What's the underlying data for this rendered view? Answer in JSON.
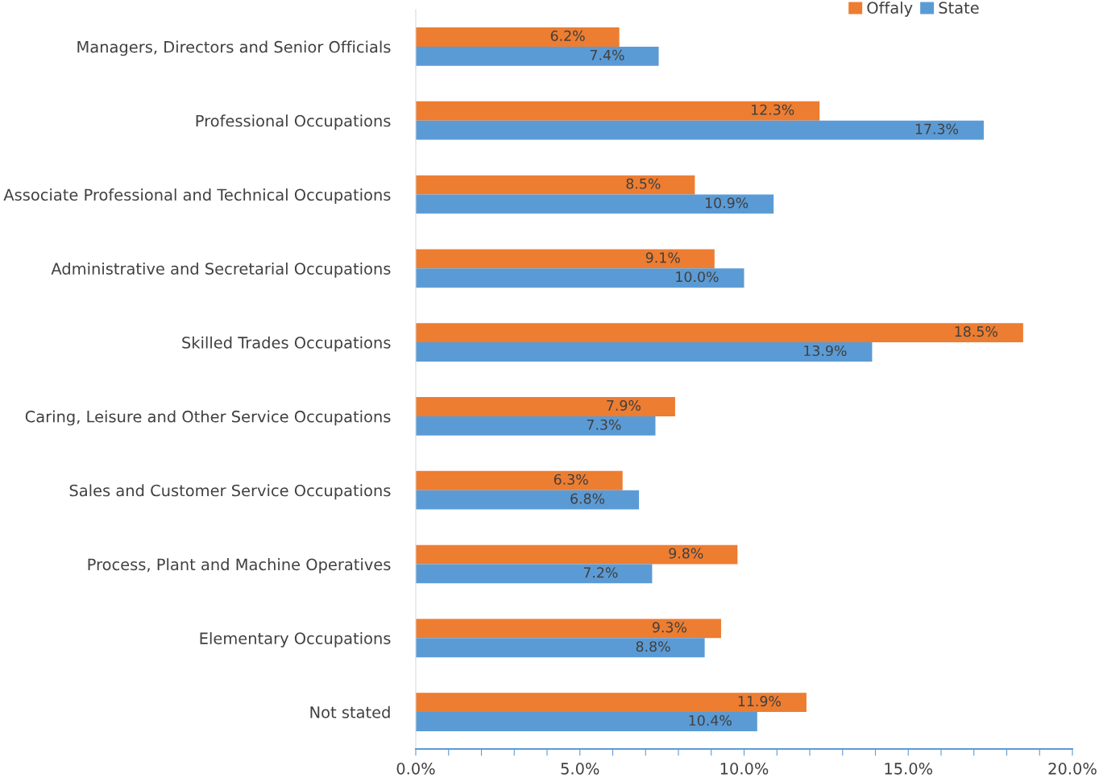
{
  "chart_data": {
    "type": "bar",
    "orientation": "horizontal",
    "categories": [
      "Managers, Directors and Senior Officials",
      "Professional Occupations",
      "Associate Professional and Technical Occupations",
      "Administrative and Secretarial Occupations",
      "Skilled Trades Occupations",
      "Caring, Leisure and Other Service Occupations",
      "Sales and Customer Service Occupations",
      "Process, Plant and Machine Operatives",
      "Elementary Occupations",
      "Not stated"
    ],
    "series": [
      {
        "name": "Offaly",
        "color": "#ed7d31",
        "values": [
          6.2,
          12.3,
          8.5,
          9.1,
          18.5,
          7.9,
          6.3,
          9.8,
          9.3,
          11.9
        ],
        "value_labels": [
          "6.2%",
          "12.3%",
          "8.5%",
          "9.1%",
          "18.5%",
          "7.9%",
          "6.3%",
          "9.8%",
          "9.3%",
          "11.9%"
        ]
      },
      {
        "name": "State",
        "color": "#5b9bd5",
        "values": [
          7.4,
          17.3,
          10.9,
          10.0,
          13.9,
          7.3,
          6.8,
          7.2,
          8.8,
          10.4
        ],
        "value_labels": [
          "7.4%",
          "17.3%",
          "10.9%",
          "10.0%",
          "13.9%",
          "7.3%",
          "6.8%",
          "7.2%",
          "8.8%",
          "10.4%"
        ]
      }
    ],
    "xlim": [
      0,
      20
    ],
    "xticks": [
      {
        "value": 0,
        "label": "0.0%"
      },
      {
        "value": 1,
        "label": null
      },
      {
        "value": 2,
        "label": null
      },
      {
        "value": 3,
        "label": null
      },
      {
        "value": 4,
        "label": null
      },
      {
        "value": 5,
        "label": "5.0%"
      },
      {
        "value": 6,
        "label": null
      },
      {
        "value": 7,
        "label": null
      },
      {
        "value": 8,
        "label": null
      },
      {
        "value": 9,
        "label": null
      },
      {
        "value": 10,
        "label": "10.0%"
      },
      {
        "value": 11,
        "label": null
      },
      {
        "value": 12,
        "label": null
      },
      {
        "value": 13,
        "label": null
      },
      {
        "value": 14,
        "label": null
      },
      {
        "value": 15,
        "label": "15.0%"
      },
      {
        "value": 16,
        "label": null
      },
      {
        "value": 17,
        "label": null
      },
      {
        "value": 18,
        "label": null
      },
      {
        "value": 19,
        "label": null
      },
      {
        "value": 20,
        "label": "20.0%"
      }
    ],
    "grid": false,
    "legend": "top right"
  }
}
